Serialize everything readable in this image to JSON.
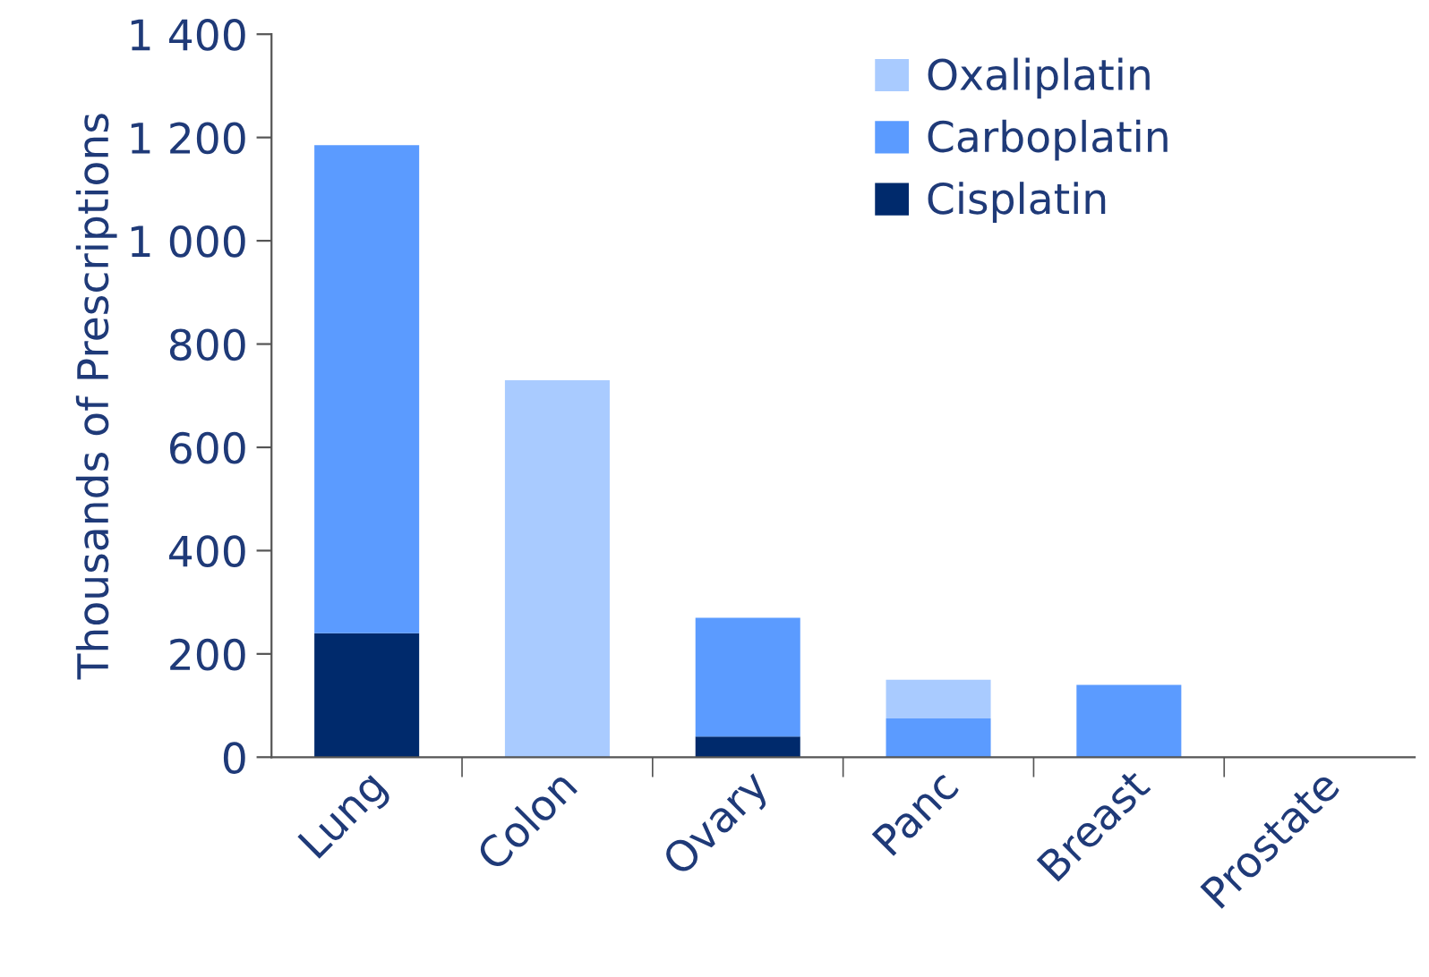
{
  "chart_data": {
    "type": "bar",
    "stacked": true,
    "ylabel": "Thousands of Prescriptions",
    "categories": [
      "Lung",
      "Colon",
      "Ovary",
      "Panc",
      "Breast",
      "Prostate"
    ],
    "series": [
      {
        "name": "Cisplatin",
        "color": "#002a6c",
        "values": [
          240,
          0,
          40,
          0,
          0,
          0
        ]
      },
      {
        "name": "Carboplatin",
        "color": "#5b9bff",
        "values": [
          945,
          0,
          230,
          75,
          140,
          0
        ]
      },
      {
        "name": "Oxaliplatin",
        "color": "#a9cbff",
        "values": [
          0,
          730,
          0,
          75,
          0,
          0
        ]
      }
    ],
    "ylim": [
      0,
      1400
    ],
    "yticks": [
      0,
      200,
      400,
      600,
      800,
      {
        "value": 1000,
        "label": "1 000"
      },
      {
        "value": 1200,
        "label": "1 200"
      },
      {
        "value": 1400,
        "label": "1 400"
      }
    ],
    "grid": false,
    "legend": "top right"
  }
}
